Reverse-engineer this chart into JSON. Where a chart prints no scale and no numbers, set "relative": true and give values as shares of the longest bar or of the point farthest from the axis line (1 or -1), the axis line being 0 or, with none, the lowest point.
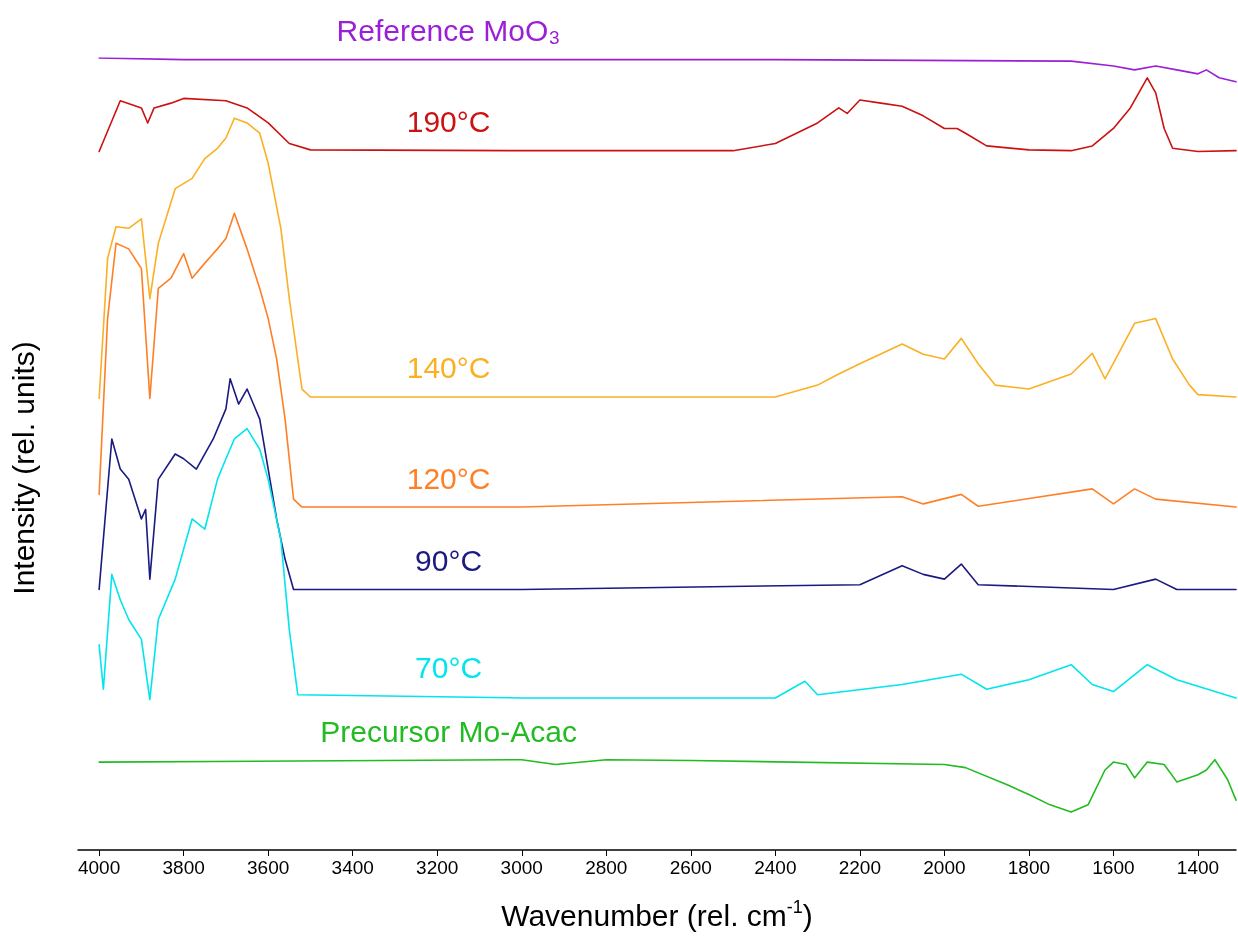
{
  "chart_data": {
    "type": "line",
    "relative": true,
    "xlabel": "Wavenumber (rel. cm$^{-1}$)",
    "ylabel": "Intensity (rel. units)",
    "xlim": [
      4050,
      1310
    ],
    "xticks": [
      4000,
      3800,
      3600,
      3400,
      3200,
      3000,
      2800,
      2600,
      2400,
      2200,
      2000,
      1800,
      1600,
      1400
    ],
    "grid": false,
    "legend": false,
    "marker": "none",
    "line_style": "solid",
    "series": [
      {
        "name": "Reference MoO₃",
        "color": "#9b1fd6",
        "x": [
          4000,
          3800,
          3000,
          2400,
          1700,
          1600,
          1550,
          1500,
          1450,
          1400,
          1380,
          1350,
          1310
        ],
        "values": [
          1.0,
          0.998,
          0.998,
          0.998,
          0.996,
          0.99,
          0.985,
          0.99,
          0.985,
          0.98,
          0.985,
          0.975,
          0.97
        ]
      },
      {
        "name": "190°C",
        "color": "#cc1111",
        "x": [
          4000,
          3950,
          3900,
          3885,
          3870,
          3830,
          3800,
          3700,
          3650,
          3600,
          3550,
          3500,
          3000,
          2500,
          2400,
          2300,
          2250,
          2230,
          2200,
          2150,
          2100,
          2050,
          2000,
          1970,
          1950,
          1900,
          1800,
          1700,
          1650,
          1600,
          1560,
          1520,
          1500,
          1480,
          1460,
          1400,
          1310
        ],
        "values": [
          0.882,
          0.946,
          0.937,
          0.918,
          0.937,
          0.943,
          0.949,
          0.946,
          0.937,
          0.918,
          0.892,
          0.884,
          0.883,
          0.883,
          0.892,
          0.918,
          0.937,
          0.93,
          0.947,
          0.943,
          0.939,
          0.927,
          0.911,
          0.911,
          0.905,
          0.889,
          0.884,
          0.883,
          0.889,
          0.911,
          0.937,
          0.975,
          0.956,
          0.911,
          0.886,
          0.882,
          0.883
        ]
      },
      {
        "name": "140°C",
        "color": "#fbb024",
        "x": [
          4000,
          3980,
          3960,
          3930,
          3900,
          3880,
          3860,
          3820,
          3780,
          3750,
          3720,
          3700,
          3680,
          3650,
          3620,
          3600,
          3570,
          3550,
          3520,
          3500,
          3000,
          2400,
          2300,
          2250,
          2200,
          2100,
          2050,
          2000,
          1960,
          1920,
          1880,
          1800,
          1700,
          1650,
          1620,
          1550,
          1500,
          1460,
          1420,
          1400,
          1310
        ],
        "values": [
          0.57,
          0.747,
          0.787,
          0.785,
          0.797,
          0.696,
          0.766,
          0.835,
          0.848,
          0.873,
          0.886,
          0.899,
          0.924,
          0.918,
          0.905,
          0.867,
          0.785,
          0.696,
          0.582,
          0.572,
          0.572,
          0.572,
          0.587,
          0.601,
          0.614,
          0.639,
          0.626,
          0.62,
          0.646,
          0.614,
          0.587,
          0.582,
          0.601,
          0.627,
          0.595,
          0.665,
          0.671,
          0.62,
          0.587,
          0.575,
          0.572
        ]
      },
      {
        "name": "120°C",
        "color": "#ff7f27",
        "x": [
          4000,
          3980,
          3960,
          3930,
          3900,
          3880,
          3860,
          3830,
          3800,
          3780,
          3750,
          3720,
          3700,
          3680,
          3650,
          3620,
          3600,
          3580,
          3560,
          3540,
          3520,
          3000,
          2100,
          2050,
          1960,
          1920,
          1650,
          1600,
          1550,
          1500,
          1310
        ],
        "values": [
          0.449,
          0.671,
          0.766,
          0.759,
          0.734,
          0.57,
          0.709,
          0.722,
          0.753,
          0.722,
          0.741,
          0.759,
          0.772,
          0.804,
          0.759,
          0.709,
          0.671,
          0.62,
          0.544,
          0.443,
          0.433,
          0.433,
          0.446,
          0.437,
          0.449,
          0.434,
          0.456,
          0.437,
          0.456,
          0.443,
          0.433
        ]
      },
      {
        "name": "90°C",
        "color": "#1a1a80",
        "x": [
          4000,
          3970,
          3950,
          3930,
          3900,
          3890,
          3880,
          3860,
          3820,
          3800,
          3770,
          3730,
          3700,
          3690,
          3670,
          3650,
          3620,
          3600,
          3580,
          3560,
          3540,
          3000,
          2200,
          2100,
          2050,
          2000,
          1960,
          1920,
          1600,
          1500,
          1450,
          1310
        ],
        "values": [
          0.329,
          0.519,
          0.481,
          0.468,
          0.418,
          0.43,
          0.342,
          0.468,
          0.5,
          0.494,
          0.481,
          0.519,
          0.557,
          0.595,
          0.563,
          0.582,
          0.544,
          0.481,
          0.418,
          0.367,
          0.329,
          0.329,
          0.335,
          0.359,
          0.348,
          0.342,
          0.361,
          0.335,
          0.329,
          0.342,
          0.329,
          0.329
        ]
      },
      {
        "name": "70°C",
        "color": "#00e5ee",
        "x": [
          4000,
          3990,
          3970,
          3950,
          3930,
          3900,
          3880,
          3860,
          3820,
          3780,
          3750,
          3720,
          3700,
          3680,
          3650,
          3620,
          3600,
          3570,
          3550,
          3530,
          3000,
          2400,
          2330,
          2300,
          2100,
          1960,
          1900,
          1800,
          1700,
          1650,
          1600,
          1520,
          1450,
          1310
        ],
        "values": [
          0.259,
          0.203,
          0.348,
          0.316,
          0.291,
          0.266,
          0.19,
          0.291,
          0.342,
          0.418,
          0.405,
          0.468,
          0.494,
          0.519,
          0.532,
          0.506,
          0.468,
          0.392,
          0.278,
          0.196,
          0.192,
          0.192,
          0.213,
          0.196,
          0.209,
          0.222,
          0.203,
          0.215,
          0.234,
          0.209,
          0.2,
          0.234,
          0.215,
          0.192
        ]
      },
      {
        "name": "Precursor Mo-Acac",
        "color": "#22bb22",
        "x": [
          4000,
          3000,
          2920,
          2800,
          2600,
          2000,
          1950,
          1850,
          1800,
          1750,
          1700,
          1660,
          1620,
          1600,
          1570,
          1550,
          1520,
          1480,
          1450,
          1400,
          1380,
          1360,
          1330,
          1310
        ],
        "values": [
          0.111,
          0.114,
          0.108,
          0.114,
          0.113,
          0.108,
          0.104,
          0.082,
          0.07,
          0.057,
          0.048,
          0.057,
          0.101,
          0.111,
          0.108,
          0.091,
          0.111,
          0.108,
          0.086,
          0.095,
          0.101,
          0.114,
          0.089,
          0.063
        ]
      }
    ]
  }
}
